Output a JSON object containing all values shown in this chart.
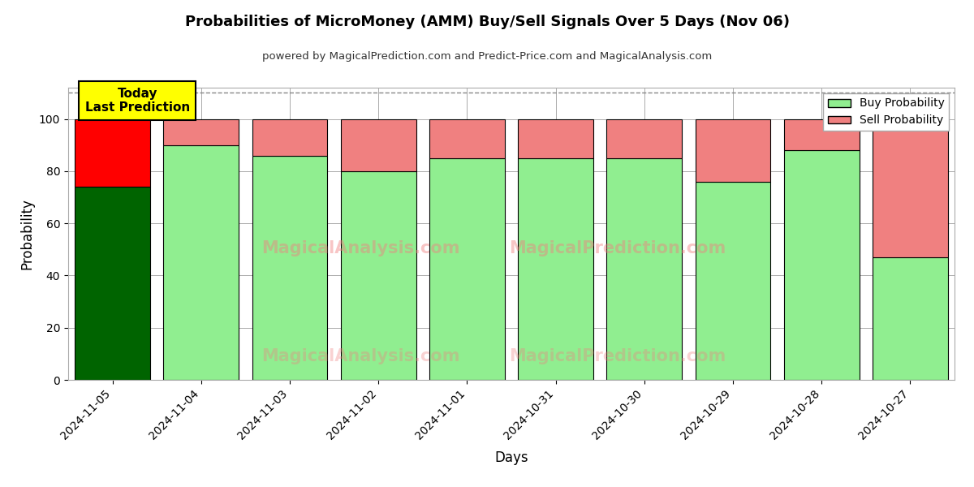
{
  "title": "Probabilities of MicroMoney (AMM) Buy/Sell Signals Over 5 Days (Nov 06)",
  "subtitle": "powered by MagicalPrediction.com and Predict-Price.com and MagicalAnalysis.com",
  "xlabel": "Days",
  "ylabel": "Probability",
  "categories": [
    "2024-11-05",
    "2024-11-04",
    "2024-11-03",
    "2024-11-02",
    "2024-11-01",
    "2024-10-31",
    "2024-10-30",
    "2024-10-29",
    "2024-10-28",
    "2024-10-27"
  ],
  "buy_values": [
    74,
    90,
    86,
    80,
    85,
    85,
    85,
    76,
    88,
    47
  ],
  "sell_values": [
    26,
    10,
    14,
    20,
    15,
    15,
    15,
    24,
    12,
    53
  ],
  "buy_color_today": "#006400",
  "buy_color_normal": "#90EE90",
  "sell_color_today": "#FF0000",
  "sell_color_normal": "#F08080",
  "bar_edge_color": "#000000",
  "today_annotation": "Today\nLast Prediction",
  "ylim": [
    0,
    112
  ],
  "dashed_line_y": 110,
  "watermark1": "MagicalAnalysis.com",
  "watermark2": "MagicalPrediction.com",
  "background_color": "#ffffff",
  "grid_color": "#aaaaaa",
  "legend_buy_label": "Buy Probability",
  "legend_sell_label": "Sell Probability"
}
